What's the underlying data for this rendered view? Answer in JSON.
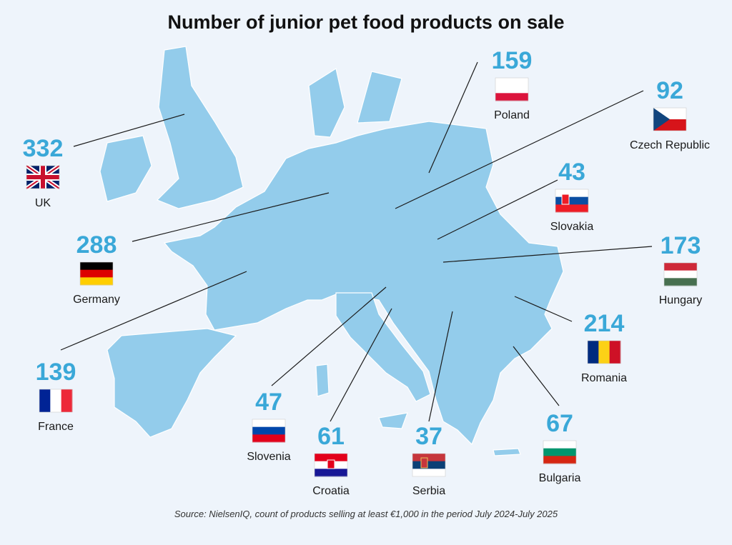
{
  "title": "Number of junior pet food products on sale",
  "countries": [
    {
      "name": "UK",
      "value": 332
    },
    {
      "name": "Germany",
      "value": 288
    },
    {
      "name": "France",
      "value": 139
    },
    {
      "name": "Slovenia",
      "value": 47
    },
    {
      "name": "Croatia",
      "value": 61
    },
    {
      "name": "Serbia",
      "value": 37
    },
    {
      "name": "Bulgaria",
      "value": 67
    },
    {
      "name": "Romania",
      "value": 214
    },
    {
      "name": "Hungary",
      "value": 173
    },
    {
      "name": "Slovakia",
      "value": 43
    },
    {
      "name": "Czech Republic",
      "value": 92
    },
    {
      "name": "Poland",
      "value": 159
    }
  ],
  "source": "Source: NielsenIQ, count of products selling at least €1,000 in the period July 2024-July 2025"
}
